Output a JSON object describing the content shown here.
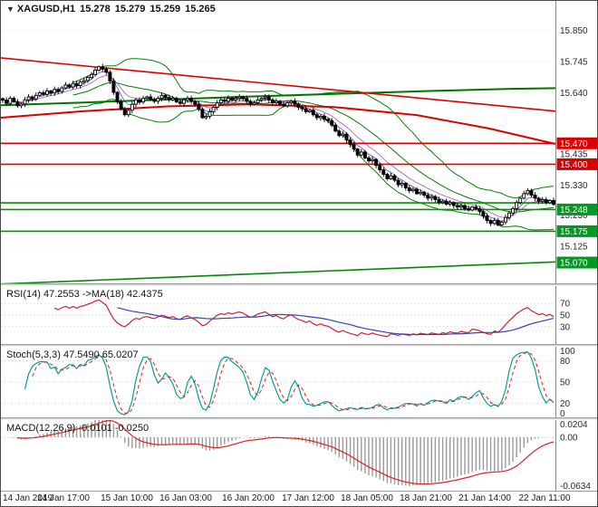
{
  "header": {
    "icon": "▼",
    "symbol": "XAGUSD,H1",
    "open": "15.278",
    "high": "15.279",
    "low": "15.259",
    "close": "15.265"
  },
  "panels": {
    "rsi": {
      "header": "RSI(14) 47.2553  ->MA(18) 42.4375"
    },
    "stoch": {
      "header": "Stoch(5,3,3) 47.5490 65.0207"
    },
    "macd": {
      "header": "MACD(12,26,9) -0.0101 -0.0250"
    }
  },
  "chart_data": {
    "type": "candlestick",
    "symbol": "XAGUSD",
    "timeframe": "H1",
    "current_quote": {
      "open": 15.278,
      "high": 15.279,
      "low": 15.259,
      "close": 15.265
    },
    "price_axis": {
      "range": [
        15.0,
        15.948
      ],
      "static_labels": [
        "15.850",
        "15.745",
        "15.640",
        "15.435",
        "15.330",
        "15.230",
        "15.125"
      ],
      "tags": [
        {
          "text": "15.470",
          "price": 15.47,
          "color": "#d80000"
        },
        {
          "text": "15.400",
          "price": 15.4,
          "color": "#d80000"
        },
        {
          "text": "15.248",
          "price": 15.248,
          "color": "#009a22"
        },
        {
          "text": "15.175",
          "price": 15.175,
          "color": "#009a22"
        },
        {
          "text": "15.070",
          "price": 15.07,
          "color": "#009a22"
        }
      ]
    },
    "first_open": 15.62,
    "closes": [
      15.615,
      15.604,
      15.621,
      15.609,
      15.596,
      15.602,
      15.616,
      15.626,
      15.619,
      15.631,
      15.64,
      15.634,
      15.646,
      15.639,
      15.651,
      15.644,
      15.656,
      15.666,
      15.659,
      15.671,
      15.664,
      15.676,
      15.681,
      15.691,
      15.701,
      15.716,
      15.727,
      15.719,
      15.709,
      15.679,
      15.641,
      15.609,
      15.584,
      15.566,
      15.581,
      15.601,
      15.616,
      15.609,
      15.621,
      15.626,
      15.617,
      15.611,
      15.621,
      15.631,
      15.624,
      15.616,
      15.621,
      15.609,
      15.604,
      15.616,
      15.621,
      15.611,
      15.601,
      15.584,
      15.556,
      15.561,
      15.576,
      15.591,
      15.606,
      15.616,
      15.611,
      15.621,
      15.616,
      15.621,
      15.626,
      15.621,
      15.611,
      15.601,
      15.606,
      15.616,
      15.621,
      15.626,
      15.616,
      15.606,
      15.611,
      15.601,
      15.596,
      15.606,
      15.611,
      15.601,
      15.591,
      15.586,
      15.576,
      15.581,
      15.566,
      15.556,
      15.561,
      15.551,
      15.546,
      15.531,
      15.511,
      15.496,
      15.501,
      15.481,
      15.466,
      15.451,
      15.431,
      15.441,
      15.421,
      15.411,
      15.416,
      15.396,
      15.381,
      15.366,
      15.351,
      15.361,
      15.346,
      15.331,
      15.336,
      15.321,
      15.311,
      15.316,
      15.301,
      15.306,
      15.296,
      15.286,
      15.291,
      15.281,
      15.271,
      15.276,
      15.266,
      15.271,
      15.261,
      15.256,
      15.261,
      15.251,
      15.246,
      15.256,
      15.251,
      15.241,
      15.226,
      15.211,
      15.201,
      15.211,
      15.196,
      15.206,
      15.221,
      15.236,
      15.251,
      15.271,
      15.286,
      15.301,
      15.311,
      15.296,
      15.286,
      15.276,
      15.281,
      15.271,
      15.278,
      15.265
    ],
    "overlays": {
      "bollinger": {
        "period": 20,
        "deviation": 2,
        "color": "#008200"
      },
      "ema_fast": {
        "period": 5,
        "color": "#5555cc"
      },
      "ema_slow": {
        "period": 10,
        "color": "#aa55aa"
      },
      "ma_trend_green": {
        "color": "#007400",
        "points": [
          [
            0,
            15.598
          ],
          [
            0.15,
            15.607
          ],
          [
            0.3,
            15.617
          ],
          [
            0.45,
            15.627
          ],
          [
            0.6,
            15.636
          ],
          [
            0.78,
            15.646
          ],
          [
            0.92,
            15.653
          ],
          [
            1,
            15.655
          ]
        ]
      },
      "ma_trend_red": {
        "color": "#dd0000",
        "points": [
          [
            0,
            15.556
          ],
          [
            0.15,
            15.578
          ],
          [
            0.3,
            15.594
          ],
          [
            0.45,
            15.601
          ],
          [
            0.6,
            15.592
          ],
          [
            0.75,
            15.565
          ],
          [
            0.88,
            15.52
          ],
          [
            1,
            15.468
          ]
        ]
      }
    },
    "drawn_lines": {
      "resistance_horizontal": [
        15.47,
        15.4
      ],
      "support_horizontal": [
        15.27,
        15.248,
        15.175
      ],
      "trendline_descending": {
        "from": [
          0,
          15.757
        ],
        "to": [
          1,
          15.578
        ],
        "color": "#dd0000"
      },
      "trendline_ascending": {
        "from": [
          0,
          14.998
        ],
        "to": [
          1,
          15.072
        ],
        "color": "#008a00"
      }
    },
    "indicators": {
      "rsi": {
        "label": "RSI(14)",
        "value": 47.2553,
        "period": 14,
        "ma_period": 18,
        "ma_value": 42.4375,
        "levels": [
          70,
          50,
          30
        ],
        "colors": {
          "main": "#cc2233",
          "ma": "#3344bb"
        }
      },
      "stoch": {
        "label": "Stoch(5,3,3)",
        "k": 47.549,
        "d": 65.0207,
        "levels": [
          80,
          50,
          20
        ],
        "axis_labels": [
          "100",
          "80",
          "50",
          "20",
          "0"
        ],
        "colors": {
          "main": "#00a0a0",
          "signal": "#dd2222"
        }
      },
      "macd": {
        "label": "MACD(12,26,9)",
        "value": -0.0101,
        "signal_value": -0.025,
        "range": [
          -0.0634,
          0.0204
        ],
        "axis_labels": [
          "0.0204",
          "0.00",
          "-0.0634"
        ],
        "colors": {
          "histogram": "#9a9a9a",
          "signal": "#dd2222"
        }
      }
    },
    "time_axis": [
      "14 Jan 2019",
      "14 Jan 17:00",
      "15 Jan 10:00",
      "16 Jan 03:00",
      "16 Jan 20:00",
      "17 Jan 12:00",
      "18 Jan 05:00",
      "18 Jan 21:00",
      "21 Jan 14:00",
      "22 Jan 11:00"
    ],
    "time_axis_positions": [
      1,
      17,
      34,
      50,
      67,
      83,
      99,
      115,
      131,
      147
    ]
  }
}
